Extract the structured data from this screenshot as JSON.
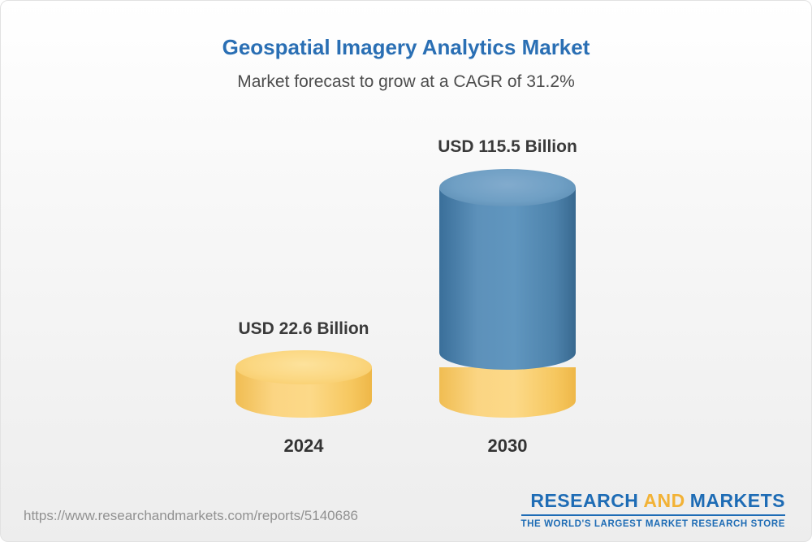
{
  "title": "Geospatial Imagery Analytics Market",
  "subtitle": "Market forecast to grow at a CAGR of 31.2%",
  "chart_data": {
    "type": "bar",
    "style": "3d-cylinder",
    "title": "Geospatial Imagery Analytics Market",
    "subtitle": "Market forecast to grow at a CAGR of 31.2%",
    "cagr_percent": 31.2,
    "unit": "USD Billion",
    "categories": [
      "2024",
      "2030"
    ],
    "values": [
      22.6,
      115.5
    ],
    "value_labels": [
      "USD 22.6 Billion",
      "USD 115.5 Billion"
    ],
    "series_colors": {
      "2024": "#f9cf71",
      "2030": "#4e86b0",
      "2030_base_band": "#f9cf71"
    },
    "legend": "none",
    "grid": false
  },
  "footer": {
    "url": "https://www.researchandmarkets.com/reports/5140686",
    "logo": {
      "part1": "RESEARCH",
      "part2": "AND",
      "part3": "MARKETS",
      "tagline": "THE WORLD'S LARGEST MARKET RESEARCH STORE"
    }
  },
  "colors": {
    "title_blue": "#2a6fb4",
    "subtitle_gray": "#4d4d4d",
    "bar_yellow": "#f9cf71",
    "bar_blue": "#4e86b0",
    "logo_blue": "#1e6cb5",
    "logo_gold": "#f2b236"
  }
}
